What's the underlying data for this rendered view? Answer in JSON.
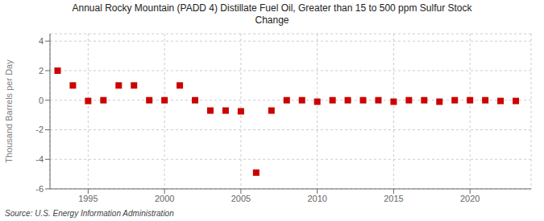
{
  "chart_data": {
    "type": "scatter",
    "title": "Annual Rocky Mountain (PADD 4) Distillate Fuel Oil, Greater than 15 to 500 ppm Sulfur Stock\nChange",
    "ylabel": "Thousand Barrels per Day",
    "source": "Source: U.S. Energy Information Administration",
    "x": [
      1993,
      1994,
      1995,
      1996,
      1997,
      1998,
      1999,
      2000,
      2001,
      2002,
      2003,
      2004,
      2005,
      2006,
      2007,
      2008,
      2009,
      2010,
      2011,
      2012,
      2013,
      2014,
      2015,
      2016,
      2017,
      2018,
      2019,
      2020,
      2021,
      2022,
      2023
    ],
    "values": [
      2.0,
      1.0,
      -0.05,
      0.0,
      1.0,
      1.0,
      0.0,
      0.0,
      1.0,
      0.0,
      -0.7,
      -0.7,
      -0.75,
      -4.9,
      -0.7,
      0.0,
      0.0,
      -0.1,
      0.0,
      0.0,
      0.0,
      0.0,
      -0.1,
      0.0,
      0.0,
      -0.1,
      0.0,
      0.0,
      0.0,
      -0.05,
      -0.05
    ],
    "color": "#cc0000",
    "marker": "square",
    "xlim": [
      1992.5,
      2024
    ],
    "ylim": [
      -6,
      4.5
    ],
    "xticks": [
      1995,
      2000,
      2005,
      2010,
      2015,
      2020
    ],
    "yticks": [
      -6,
      -4,
      -2,
      0,
      2,
      4
    ],
    "grid": true
  }
}
